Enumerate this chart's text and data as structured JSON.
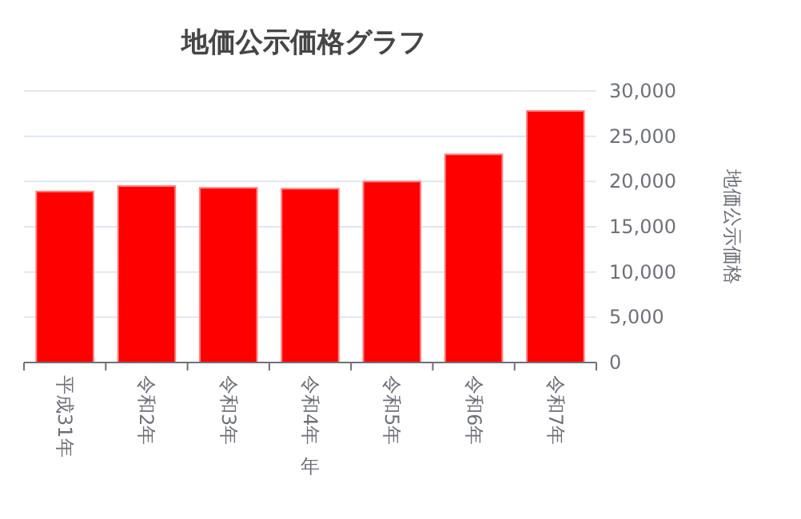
{
  "chart_data": {
    "type": "bar",
    "title": "地価公示価格グラフ",
    "xlabel": "年",
    "ylabel": "地価公示価格",
    "categories": [
      "平成31年",
      "令和2年",
      "令和3年",
      "令和4年",
      "令和5年",
      "令和6年",
      "令和7年"
    ],
    "values": [
      18900,
      19500,
      19300,
      19200,
      20000,
      23000,
      27800
    ],
    "color": "#ff0000",
    "ylim": [
      0,
      30000
    ],
    "yticks": [
      {
        "value": 0,
        "label": "0"
      },
      {
        "value": 5000,
        "label": "5,000"
      },
      {
        "value": 10000,
        "label": "10,000"
      },
      {
        "value": 15000,
        "label": "15,000"
      },
      {
        "value": 20000,
        "label": "20,000"
      },
      {
        "value": 25000,
        "label": "25,000"
      },
      {
        "value": 30000,
        "label": "30,000"
      }
    ],
    "grid": "y"
  }
}
